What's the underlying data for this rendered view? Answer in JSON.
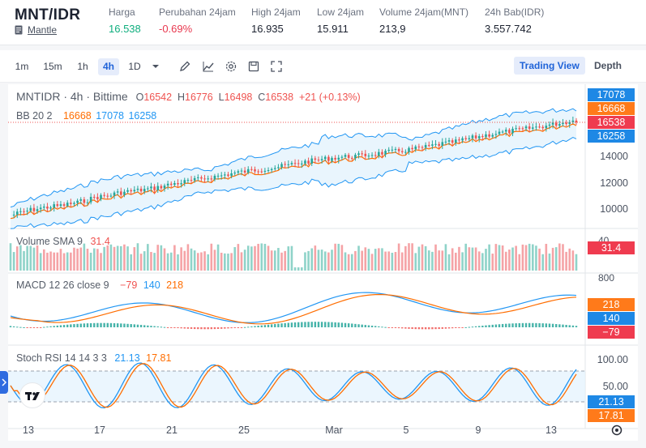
{
  "ticker": {
    "pair": "MNT/IDR",
    "project_link": "Mantle",
    "stats": [
      {
        "label": "Harga",
        "value": "16.538",
        "tone": "up"
      },
      {
        "label": "Perubahan 24jam",
        "value": "-0.69%",
        "tone": "down"
      },
      {
        "label": "High 24jam",
        "value": "16.935",
        "tone": ""
      },
      {
        "label": "Low 24jam",
        "value": "15.911",
        "tone": ""
      },
      {
        "label": "Volume 24jam(MNT)",
        "value": "213,9",
        "tone": ""
      },
      {
        "label": "24h Bab(IDR)",
        "value": "3.557.742",
        "tone": ""
      }
    ]
  },
  "toolbar": {
    "intervals": [
      "1m",
      "15m",
      "1h",
      "4h",
      "1D"
    ],
    "active_interval": "4h",
    "icons": [
      "pencil-icon",
      "line-chart-icon",
      "gear-icon",
      "save-icon",
      "fullscreen-icon"
    ],
    "trading_view_label": "Trading View",
    "depth_label": "Depth"
  },
  "chart": {
    "legend": {
      "symbol": "MNTIDR · 4h · Bittime",
      "o_label": "O",
      "o": "16542",
      "h_label": "H",
      "h": "16776",
      "l_label": "L",
      "l": "16498",
      "c_label": "C",
      "c": "16538",
      "change": "+21 (+0.13%)"
    },
    "bb": {
      "label": "BB 20 2",
      "basis": "16668",
      "upper": "17078",
      "lower": "16258"
    },
    "volume": {
      "label": "Volume SMA 9",
      "value": "31.4"
    },
    "macd": {
      "label": "MACD 12 26 close 9",
      "hist": "−79",
      "macd": "140",
      "signal": "218"
    },
    "stoch": {
      "label": "Stoch RSI 14 14 3 3",
      "k": "21.13",
      "d": "17.81"
    },
    "price_axis": [
      "14000",
      "12000",
      "10000"
    ],
    "price_badges": [
      "17078",
      "16668",
      "16538",
      "16258"
    ],
    "volume_axis_tick": "40",
    "volume_badge": "31.4",
    "macd_axis_tick": "800",
    "macd_badges": [
      "218",
      "140",
      "−79"
    ],
    "stoch_axis": [
      "100.00",
      "50.00"
    ],
    "stoch_badges": [
      "21.13",
      "17.81"
    ],
    "time_axis": [
      "13",
      "17",
      "21",
      "25",
      "Mar",
      "5",
      "9",
      "13"
    ],
    "colors": {
      "up": "#26a69a",
      "down": "#ef5350",
      "blue": "#2196f3",
      "orange": "#ff6d00",
      "bb_fill": "#e3f2fd",
      "badge_blue": "#1e88e5",
      "badge_orange": "#ff7a1a",
      "badge_red": "#ef3b4f"
    }
  }
}
